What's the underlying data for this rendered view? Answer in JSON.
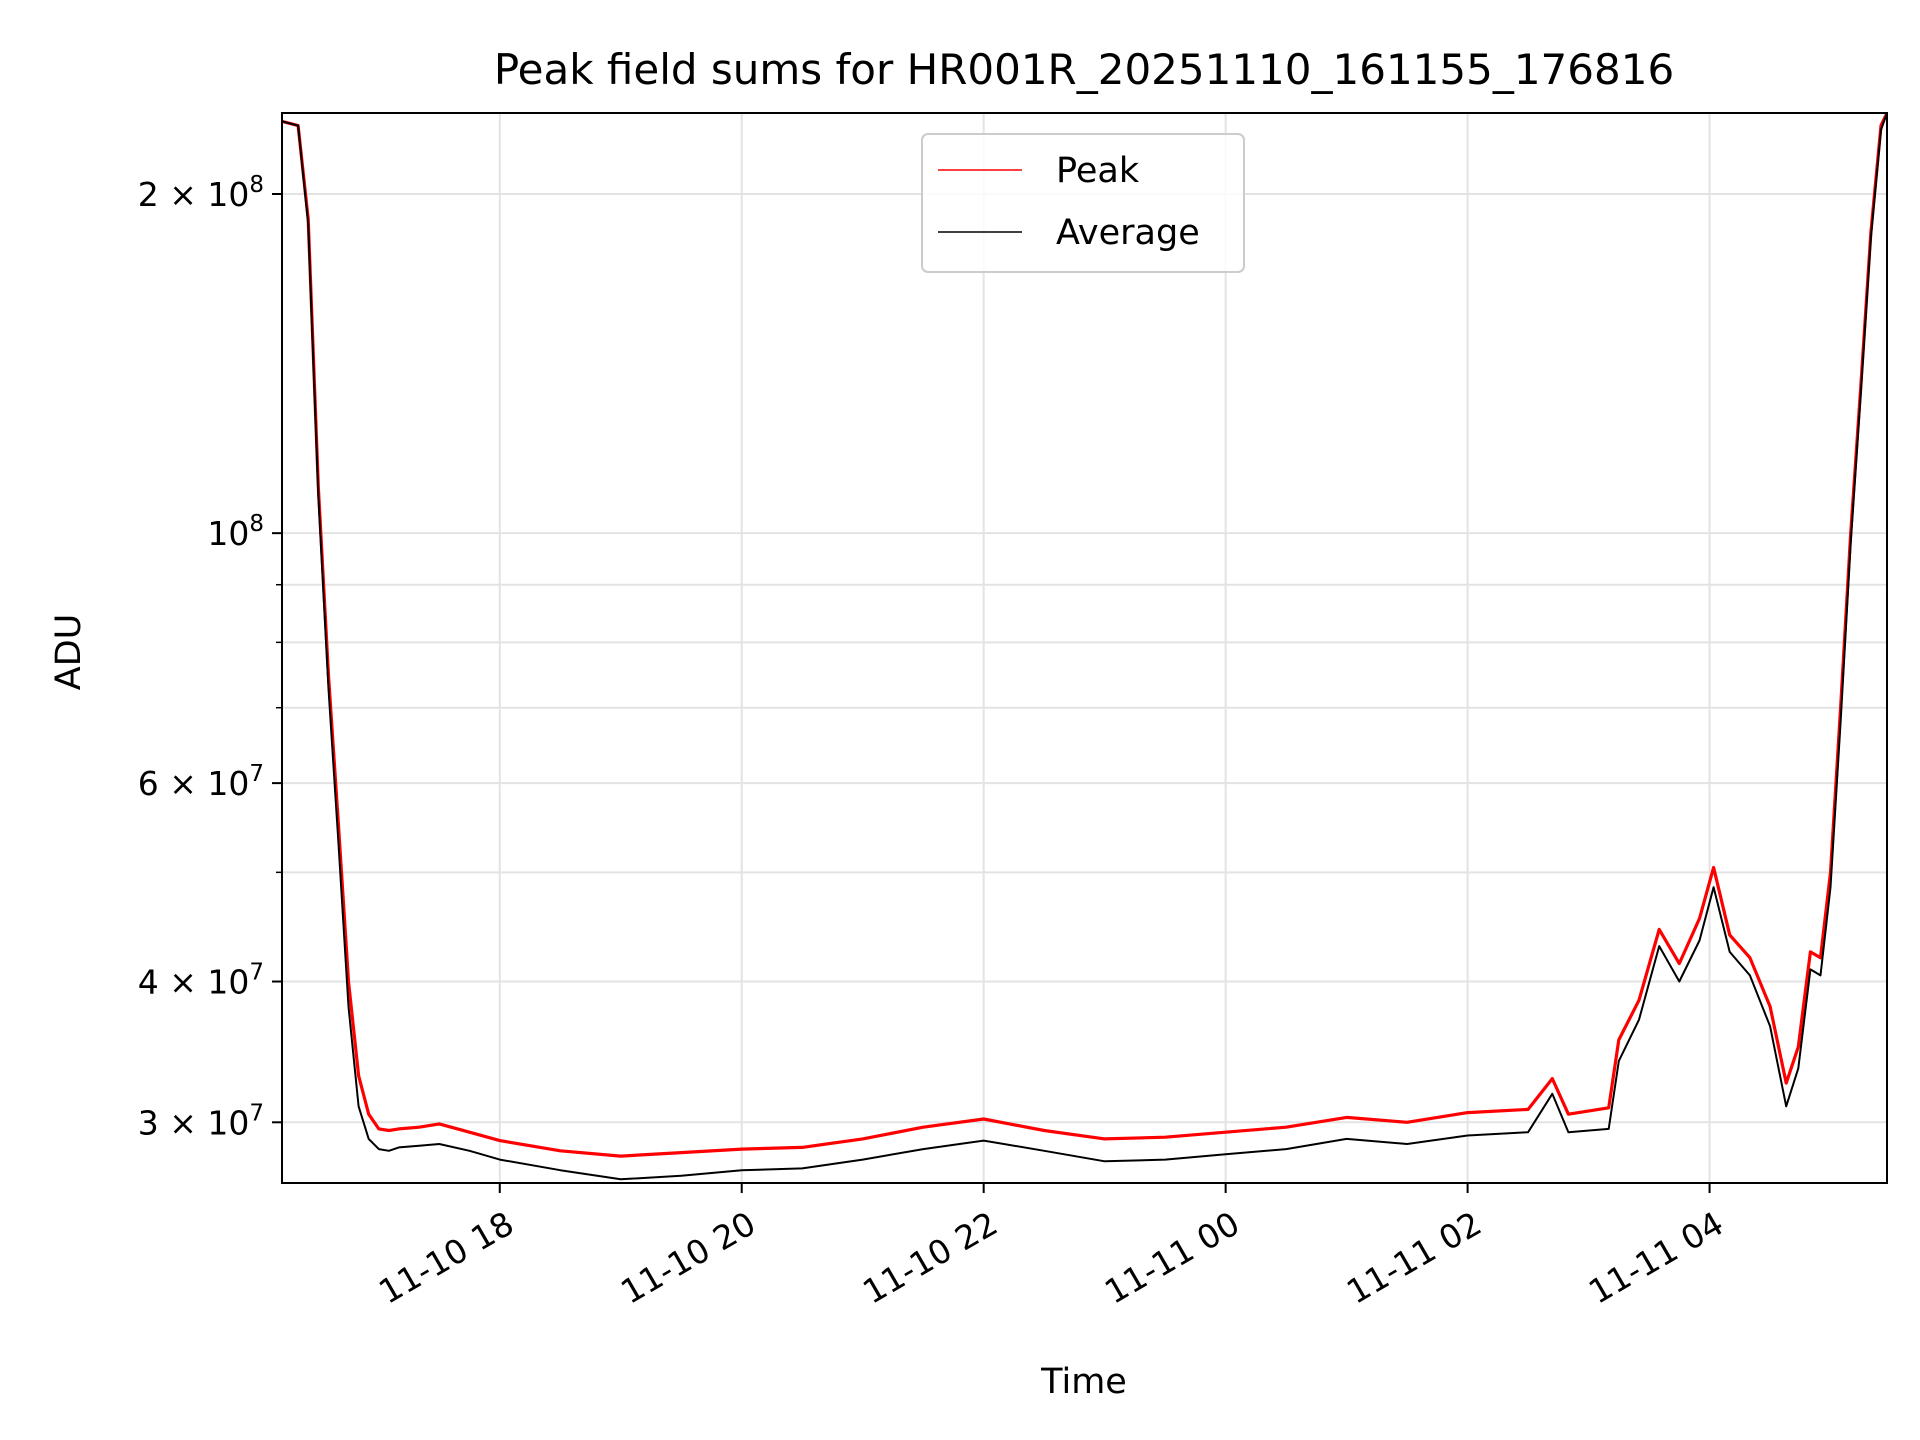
{
  "chart_data": {
    "type": "line",
    "title": "Peak field sums for HR001R_20251110_161155_176816",
    "xlabel": "Time",
    "ylabel": "ADU",
    "yscale": "log",
    "grid": true,
    "legend_position": "top-center",
    "xlim": [
      "2025-11-10 16:12",
      "2025-11-11 05:28"
    ],
    "ylim": [
      26500000,
      236000000
    ],
    "x_ticks": [
      {
        "t": "2025-11-10 18:00",
        "label": "11-10 18"
      },
      {
        "t": "2025-11-10 20:00",
        "label": "11-10 20"
      },
      {
        "t": "2025-11-10 22:00",
        "label": "11-10 22"
      },
      {
        "t": "2025-11-11 00:00",
        "label": "11-11 00"
      },
      {
        "t": "2025-11-11 02:00",
        "label": "11-11 02"
      },
      {
        "t": "2025-11-11 04:00",
        "label": "11-11 04"
      }
    ],
    "y_ticks": [
      {
        "v": 30000000,
        "base": "3 × 10",
        "exp": "7"
      },
      {
        "v": 40000000,
        "base": "4 × 10",
        "exp": "7"
      },
      {
        "v": 60000000,
        "base": "6 × 10",
        "exp": "7"
      },
      {
        "v": 100000000,
        "base": "10",
        "exp": "8"
      },
      {
        "v": 200000000,
        "base": "2 × 10",
        "exp": "8"
      }
    ],
    "y_minor_ticks": [
      50000000,
      70000000,
      80000000,
      90000000
    ],
    "series": [
      {
        "name": "Peak",
        "color": "#ff0000",
        "x": [
          "2025-11-10 16:12",
          "2025-11-10 16:20",
          "2025-11-10 16:25",
          "2025-11-10 16:30",
          "2025-11-10 16:35",
          "2025-11-10 16:40",
          "2025-11-10 16:45",
          "2025-11-10 16:50",
          "2025-11-10 16:55",
          "2025-11-10 17:00",
          "2025-11-10 17:05",
          "2025-11-10 17:10",
          "2025-11-10 17:20",
          "2025-11-10 17:30",
          "2025-11-10 17:45",
          "2025-11-10 18:00",
          "2025-11-10 18:30",
          "2025-11-10 19:00",
          "2025-11-10 19:30",
          "2025-11-10 20:00",
          "2025-11-10 20:30",
          "2025-11-10 21:00",
          "2025-11-10 21:30",
          "2025-11-10 22:00",
          "2025-11-10 22:30",
          "2025-11-10 23:00",
          "2025-11-10 23:30",
          "2025-11-11 00:00",
          "2025-11-11 00:30",
          "2025-11-11 01:00",
          "2025-11-11 01:30",
          "2025-11-11 02:00",
          "2025-11-11 02:30",
          "2025-11-11 02:42",
          "2025-11-11 02:50",
          "2025-11-11 03:10",
          "2025-11-11 03:15",
          "2025-11-11 03:25",
          "2025-11-11 03:35",
          "2025-11-11 03:45",
          "2025-11-11 03:55",
          "2025-11-11 04:02",
          "2025-11-11 04:10",
          "2025-11-11 04:20",
          "2025-11-11 04:30",
          "2025-11-11 04:38",
          "2025-11-11 04:44",
          "2025-11-11 04:50",
          "2025-11-11 04:55",
          "2025-11-11 05:00",
          "2025-11-11 05:05",
          "2025-11-11 05:10",
          "2025-11-11 05:15",
          "2025-11-11 05:20",
          "2025-11-11 05:25",
          "2025-11-11 05:28"
        ],
        "y": [
          232000000,
          230000000,
          190000000,
          110000000,
          75000000,
          55000000,
          40000000,
          33000000,
          30500000,
          29600000,
          29500000,
          29600000,
          29700000,
          29900000,
          29400000,
          28900000,
          28300000,
          28000000,
          28200000,
          28400000,
          28500000,
          29000000,
          29700000,
          30200000,
          29500000,
          29000000,
          29100000,
          29400000,
          29700000,
          30300000,
          30000000,
          30600000,
          30800000,
          32800000,
          30500000,
          30900000,
          35500000,
          38500000,
          44500000,
          41500000,
          45500000,
          50500000,
          44000000,
          42000000,
          38000000,
          32500000,
          35000000,
          42500000,
          42000000,
          50000000,
          70000000,
          100000000,
          135000000,
          185000000,
          230000000,
          236000000
        ]
      },
      {
        "name": "Average",
        "color": "#000000",
        "x": [
          "2025-11-10 16:12",
          "2025-11-10 16:20",
          "2025-11-10 16:25",
          "2025-11-10 16:30",
          "2025-11-10 16:35",
          "2025-11-10 16:40",
          "2025-11-10 16:45",
          "2025-11-10 16:50",
          "2025-11-10 16:55",
          "2025-11-10 17:00",
          "2025-11-10 17:05",
          "2025-11-10 17:10",
          "2025-11-10 17:20",
          "2025-11-10 17:30",
          "2025-11-10 17:45",
          "2025-11-10 18:00",
          "2025-11-10 18:30",
          "2025-11-10 19:00",
          "2025-11-10 19:30",
          "2025-11-10 20:00",
          "2025-11-10 20:30",
          "2025-11-10 21:00",
          "2025-11-10 21:30",
          "2025-11-10 22:00",
          "2025-11-10 22:30",
          "2025-11-10 23:00",
          "2025-11-10 23:30",
          "2025-11-11 00:00",
          "2025-11-11 00:30",
          "2025-11-11 01:00",
          "2025-11-11 01:30",
          "2025-11-11 02:00",
          "2025-11-11 02:30",
          "2025-11-11 02:42",
          "2025-11-11 02:50",
          "2025-11-11 03:10",
          "2025-11-11 03:15",
          "2025-11-11 03:25",
          "2025-11-11 03:35",
          "2025-11-11 03:45",
          "2025-11-11 03:55",
          "2025-11-11 04:02",
          "2025-11-11 04:10",
          "2025-11-11 04:20",
          "2025-11-11 04:30",
          "2025-11-11 04:38",
          "2025-11-11 04:44",
          "2025-11-11 04:50",
          "2025-11-11 04:55",
          "2025-11-11 05:00",
          "2025-11-11 05:05",
          "2025-11-11 05:10",
          "2025-11-11 05:15",
          "2025-11-11 05:20",
          "2025-11-11 05:25",
          "2025-11-11 05:28"
        ],
        "y": [
          232000000,
          230000000,
          188000000,
          108000000,
          73000000,
          53000000,
          38000000,
          31000000,
          29000000,
          28400000,
          28300000,
          28500000,
          28600000,
          28700000,
          28300000,
          27800000,
          27200000,
          26700000,
          26900000,
          27200000,
          27300000,
          27800000,
          28400000,
          28900000,
          28300000,
          27700000,
          27800000,
          28100000,
          28400000,
          29000000,
          28700000,
          29200000,
          29400000,
          31800000,
          29400000,
          29600000,
          34000000,
          37000000,
          43000000,
          40000000,
          43500000,
          48500000,
          42500000,
          40500000,
          36500000,
          31000000,
          33500000,
          41000000,
          40500000,
          48500000,
          68000000,
          98000000,
          133000000,
          183000000,
          228000000,
          236000000
        ]
      }
    ]
  }
}
